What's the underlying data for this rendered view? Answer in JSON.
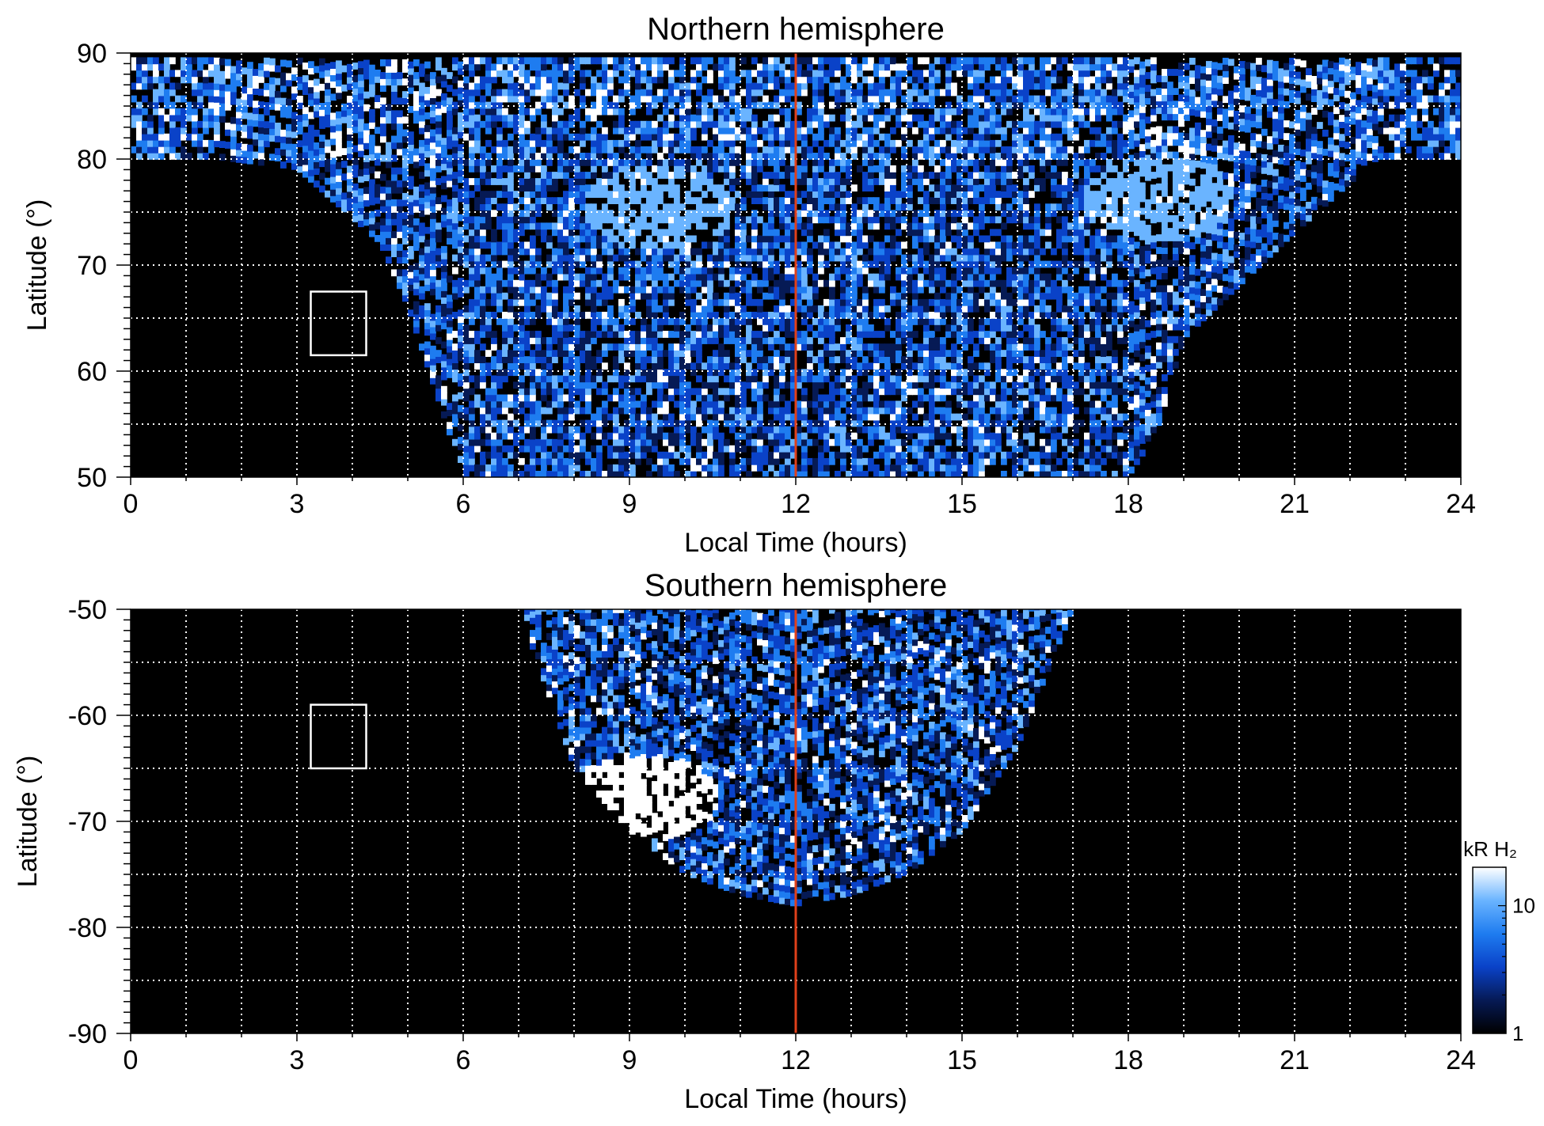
{
  "chart_data": [
    {
      "type": "heatmap",
      "title": "Northern hemisphere",
      "xlabel": "Local Time (hours)",
      "ylabel": "Latitude (°)",
      "xlim": [
        0,
        24
      ],
      "ylim": [
        50,
        90
      ],
      "x_ticks": [
        "0",
        "3",
        "6",
        "9",
        "12",
        "15",
        "18",
        "21",
        "24"
      ],
      "y_ticks": [
        "50",
        "60",
        "70",
        "80",
        "90"
      ],
      "grid": true,
      "grid_style": "dotted white, every 1 h and 5°",
      "background": "#000000",
      "reference_line": {
        "x": 12,
        "color": "#e0401a"
      },
      "box": {
        "x": [
          3.25,
          4.25
        ],
        "y": [
          61.5,
          67.5
        ],
        "color": "#ffffff"
      },
      "coverage": {
        "lt_edges": [
          0,
          1.5,
          3,
          4.5,
          5,
          6,
          7,
          8,
          9,
          10,
          11,
          12,
          13,
          14,
          15,
          16,
          17,
          18,
          18.5,
          19,
          21,
          22.5,
          24
        ],
        "lat_min": [
          80,
          80,
          79,
          72,
          66,
          50,
          50,
          50,
          50,
          50,
          50,
          50,
          50,
          50,
          50,
          50,
          50,
          50,
          54,
          63,
          73,
          80,
          80
        ],
        "lat_max": 89
      },
      "features": [
        {
          "name": "polar band",
          "lat": [
            80,
            89
          ],
          "lt": [
            0,
            24
          ],
          "level": "bright"
        },
        {
          "name": "dawn arc",
          "lat": 75,
          "lt": 9.5,
          "level": "bright"
        },
        {
          "name": "dusk arc",
          "lat": 76,
          "lt": 18.5,
          "level": "bright"
        }
      ]
    },
    {
      "type": "heatmap",
      "title": "Southern hemisphere",
      "xlabel": "Local Time (hours)",
      "ylabel": "Latitude (°)",
      "xlim": [
        0,
        24
      ],
      "ylim": [
        -90,
        -50
      ],
      "x_ticks": [
        "0",
        "3",
        "6",
        "9",
        "12",
        "15",
        "18",
        "21",
        "24"
      ],
      "y_ticks": [
        "-90",
        "-80",
        "-70",
        "-60",
        "-50"
      ],
      "grid": true,
      "grid_style": "dotted white, every 1 h and 5°",
      "background": "#000000",
      "reference_line": {
        "x": 12,
        "color": "#e0401a"
      },
      "box": {
        "x": [
          3.25,
          4.25
        ],
        "y": [
          -65,
          -59
        ],
        "color": "#ffffff"
      },
      "coverage": {
        "lt_edges": [
          7,
          8,
          9,
          10,
          11,
          12,
          13,
          14,
          15,
          16,
          17
        ],
        "lat_min": [
          -50,
          -65,
          -71,
          -75,
          -77,
          -78,
          -77,
          -75,
          -71,
          -63,
          -50
        ],
        "lat_max": -50
      },
      "features": [
        {
          "name": "dawn patch",
          "lat": -68,
          "lt": 9.2,
          "level": "saturated"
        }
      ]
    }
  ],
  "colorbar": {
    "label": "kR H₂",
    "scale": "log",
    "range": [
      1,
      20
    ],
    "ticks": [
      "10",
      "1"
    ],
    "colormap": [
      "#000000",
      "#061a55",
      "#0a42c8",
      "#1e7cf0",
      "#6ab4ff",
      "#ffffff"
    ]
  }
}
